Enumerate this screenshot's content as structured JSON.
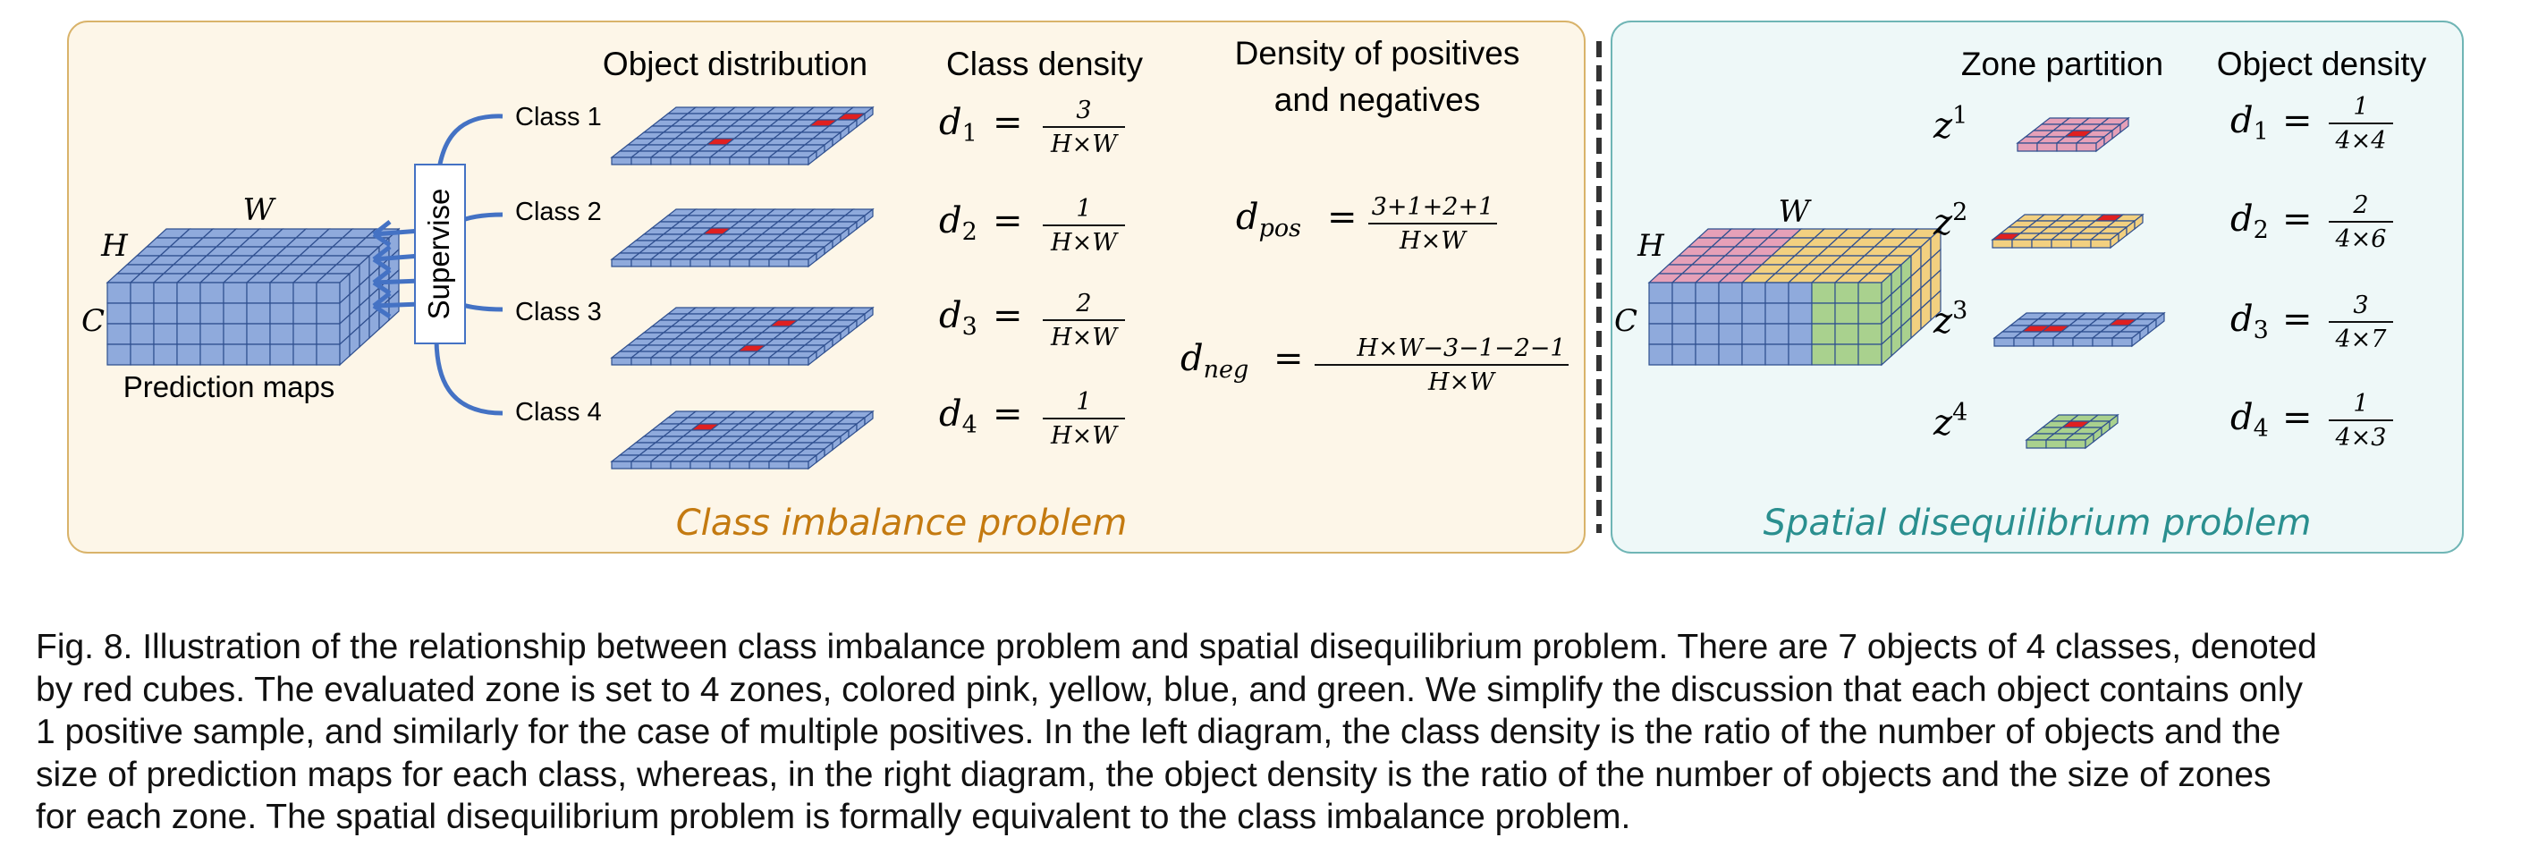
{
  "left_panel": {
    "headers": {
      "object_distribution": "Object distribution",
      "class_density": "Class density",
      "density_pos_neg_line1": "Density of positives",
      "density_pos_neg_line2": "and negatives"
    },
    "prediction_maps_label": "Prediction maps",
    "dim_labels": {
      "w": "W",
      "h": "H",
      "c": "C"
    },
    "supervise_label": "Supervise",
    "classes": [
      {
        "label": "Class 1",
        "d_sub": "1",
        "num": "3",
        "den": "H×W"
      },
      {
        "label": "Class 2",
        "d_sub": "2",
        "num": "1",
        "den": "H×W"
      },
      {
        "label": "Class 3",
        "d_sub": "3",
        "num": "2",
        "den": "H×W"
      },
      {
        "label": "Class 4",
        "d_sub": "4",
        "num": "1",
        "den": "H×W"
      }
    ],
    "d_pos": {
      "d": "d",
      "sub": "pos",
      "num": "3+1+2+1",
      "den": "H×W"
    },
    "d_neg": {
      "d": "d",
      "sub": "neg",
      "num": "H×W−3−1−2−1",
      "den": "H×W"
    },
    "title": "Class imbalance problem"
  },
  "right_panel": {
    "headers": {
      "zone_partition": "Zone partition",
      "object_density": "Object density"
    },
    "dim_labels": {
      "w": "W",
      "h": "H",
      "c": "C"
    },
    "zones": [
      {
        "z": "z",
        "sup": "1",
        "d_sub": "1",
        "num": "1",
        "den": "4×4"
      },
      {
        "z": "z",
        "sup": "2",
        "d_sub": "2",
        "num": "2",
        "den": "4×6"
      },
      {
        "z": "z",
        "sup": "3",
        "d_sub": "3",
        "num": "3",
        "den": "4×7"
      },
      {
        "z": "z",
        "sup": "4",
        "d_sub": "4",
        "num": "1",
        "den": "4×3"
      }
    ],
    "title": "Spatial disequilibrium problem"
  },
  "colors": {
    "left_bg": "#fdf6e8",
    "left_border": "#d9b36a",
    "right_bg": "#eef8f8",
    "right_border": "#6fb5b5",
    "left_title": "#c47a10",
    "right_title": "#2a8f8f",
    "cube_blue": "#8faadc",
    "cube_edge": "#2f4f8f",
    "red": "#e02020",
    "pink": "#e6a0b8",
    "yellow": "#f2d080",
    "green": "#a9d18e",
    "arrow": "#4472c4"
  },
  "caption": {
    "lines": [
      "Fig. 8. Illustration of the relationship between class imbalance problem and spatial disequilibrium problem. There are 7 objects of 4 classes, denoted",
      "by red cubes. The evaluated zone is set to 4 zones, colored pink, yellow, blue, and green. We simplify the discussion that each object contains only",
      "1 positive sample, and similarly for the case of multiple positives. In the left diagram, the class density is the ratio of the number of objects and the",
      "size of prediction maps for each class, whereas, in the right diagram, the object density is the ratio of the number of objects and the size of zones",
      "for each zone. The spatial disequilibrium problem is formally equivalent to the class imbalance problem."
    ]
  }
}
